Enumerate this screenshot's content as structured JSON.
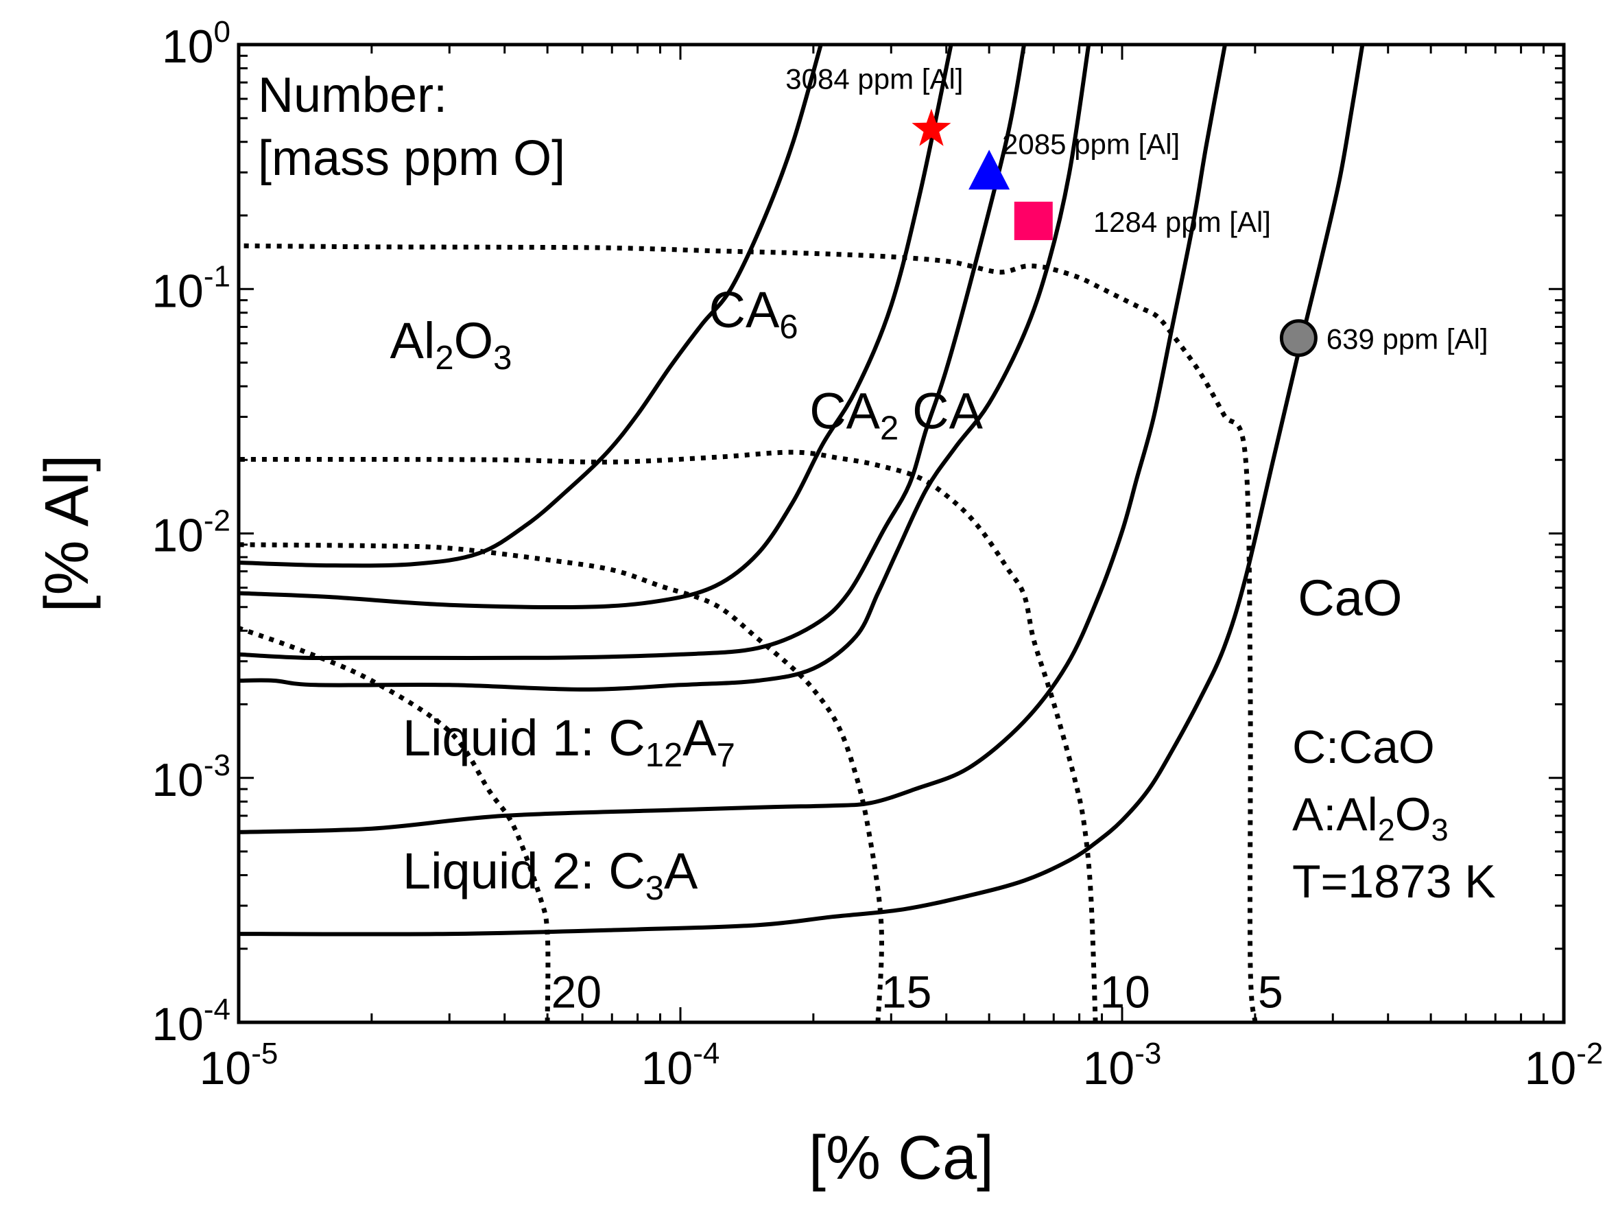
{
  "chart_data": {
    "type": "line",
    "xscale": "log",
    "yscale": "log",
    "xlim": [
      1e-05,
      0.01
    ],
    "ylim": [
      0.0001,
      1
    ],
    "xlabel": "[% Ca]",
    "ylabel": "[% Al]",
    "x_ticks": [
      {
        "base": "10",
        "exp": "-5",
        "value": 1e-05
      },
      {
        "base": "10",
        "exp": "-4",
        "value": 0.0001
      },
      {
        "base": "10",
        "exp": "-3",
        "value": 0.001
      },
      {
        "base": "10",
        "exp": "-2",
        "value": 0.01
      }
    ],
    "y_ticks": [
      {
        "base": "10",
        "exp": "-4",
        "value": 0.0001
      },
      {
        "base": "10",
        "exp": "-3",
        "value": 0.001
      },
      {
        "base": "10",
        "exp": "-2",
        "value": 0.01
      },
      {
        "base": "10",
        "exp": "-1",
        "value": 0.1
      },
      {
        "base": "10",
        "exp": "0",
        "value": 1
      }
    ],
    "legend_title": [
      "Number:",
      "[mass ppm O]"
    ],
    "region_labels": [
      {
        "id": "al2o3",
        "parts": [
          {
            "t": "Al"
          },
          {
            "t": "2",
            "sub": true
          },
          {
            "t": "O"
          },
          {
            "t": "3",
            "sub": true
          }
        ],
        "x": 2.2e-05,
        "y": 0.062
      },
      {
        "id": "ca6",
        "parts": [
          {
            "t": "CA"
          },
          {
            "t": "6",
            "sub": true
          }
        ],
        "x": 0.000116,
        "y": 0.083
      },
      {
        "id": "ca2",
        "parts": [
          {
            "t": "CA"
          },
          {
            "t": "2",
            "sub": true
          }
        ],
        "x": 0.000196,
        "y": 0.032
      },
      {
        "id": "ca",
        "parts": [
          {
            "t": "CA"
          }
        ],
        "x": 0.000335,
        "y": 0.032
      },
      {
        "id": "cao",
        "parts": [
          {
            "t": "CaO"
          }
        ],
        "x": 0.0025,
        "y": 0.0055
      },
      {
        "id": "liquid1",
        "parts": [
          {
            "t": "Liquid 1:  C"
          },
          {
            "t": "12",
            "sub": true
          },
          {
            "t": "A"
          },
          {
            "t": "7",
            "sub": true
          }
        ],
        "x": 2.35e-05,
        "y": 0.00147
      },
      {
        "id": "liquid2",
        "parts": [
          {
            "t": "Liquid 2:  C"
          },
          {
            "t": "3",
            "sub": true
          },
          {
            "t": "A"
          }
        ],
        "x": 2.35e-05,
        "y": 0.00042
      }
    ],
    "annotation_lines": [
      {
        "id": "c-cao",
        "parts": [
          {
            "t": "C:CaO"
          }
        ]
      },
      {
        "id": "a-al2o3",
        "parts": [
          {
            "t": "A:Al"
          },
          {
            "t": "2",
            "sub": true
          },
          {
            "t": "O"
          },
          {
            "t": "3",
            "sub": true
          }
        ]
      },
      {
        "id": "temperature",
        "parts": [
          {
            "t": "T=1873 K"
          }
        ]
      }
    ],
    "series": [
      {
        "name": "iso-oxygen 20 ppm",
        "oxygen_ppm": 20,
        "label": "20",
        "label_x": 5.1e-05,
        "label_y": 0.000135,
        "x": [
          5e-05,
          5e-05,
          4.8e-05,
          4.2e-05,
          3.7e-05,
          3e-05,
          2e-05,
          1.4e-05,
          1e-05
        ],
        "y": [
          0.0001,
          0.00023,
          0.00033,
          0.00063,
          0.00088,
          0.00155,
          0.0025,
          0.0033,
          0.0041
        ]
      },
      {
        "name": "iso-oxygen 15 ppm",
        "oxygen_ppm": 15,
        "label": "15",
        "label_x": 0.000285,
        "label_y": 0.000135,
        "x": [
          0.00028,
          0.000285,
          0.000265,
          0.000245,
          0.000225,
          0.0002,
          0.00018,
          0.00015,
          0.00012,
          9e-05,
          7e-05,
          5e-05,
          3e-05,
          2e-05,
          1e-05
        ],
        "y": [
          0.0001,
          0.00025,
          0.00065,
          0.00115,
          0.0017,
          0.0023,
          0.0028,
          0.0037,
          0.0051,
          0.0061,
          0.0071,
          0.0078,
          0.0087,
          0.0089,
          0.009
        ]
      },
      {
        "name": "iso-oxygen 10 ppm",
        "oxygen_ppm": 10,
        "label": "10",
        "label_x": 0.00089,
        "label_y": 0.000135,
        "x": [
          0.00087,
          0.00085,
          0.00082,
          0.00078,
          0.00072,
          0.00068,
          0.00063,
          0.0006,
          0.00055,
          0.00048,
          0.00042,
          0.00035,
          0.00028,
          0.00023,
          0.00018,
          0.00012,
          7e-05,
          4e-05,
          2e-05,
          1e-05
        ],
        "y": [
          0.0001,
          0.00033,
          0.00065,
          0.001,
          0.0017,
          0.0024,
          0.0037,
          0.0056,
          0.0072,
          0.0103,
          0.0133,
          0.0168,
          0.019,
          0.0203,
          0.0215,
          0.0205,
          0.0196,
          0.02,
          0.0201,
          0.0201
        ]
      },
      {
        "name": "iso-oxygen 5 ppm",
        "oxygen_ppm": 5,
        "label": "5",
        "label_x": 0.00203,
        "label_y": 0.000135,
        "x": [
          0.002,
          0.00195,
          0.00195,
          0.0019,
          0.0017,
          0.0015,
          0.0013,
          0.0012,
          0.0011,
          0.001,
          0.0009,
          0.0008,
          0.0007,
          0.00065,
          0.0006,
          0.00053,
          0.00045,
          0.0004,
          0.0003,
          0.0002,
          0.00012,
          7e-05,
          4e-05,
          2e-05,
          1e-05
        ],
        "y": [
          0.0001,
          0.00018,
          0.0025,
          0.021,
          0.0306,
          0.0456,
          0.0651,
          0.0773,
          0.0838,
          0.0913,
          0.1004,
          0.1113,
          0.1203,
          0.1235,
          0.1237,
          0.1172,
          0.1246,
          0.13,
          0.1355,
          0.1398,
          0.1432,
          0.1473,
          0.1483,
          0.1488,
          0.1503
        ]
      },
      {
        "name": "Al-Ca equilibrium curve 1",
        "x": [
          1e-05,
          1.6e-05,
          2.5e-05,
          3.5e-05,
          4.5e-05,
          5.5e-05,
          6.8e-05,
          8e-05,
          9.5e-05,
          0.000112,
          0.00013,
          0.000155,
          0.00018,
          0.000208
        ],
        "y": [
          0.0076,
          0.0074,
          0.0075,
          0.0083,
          0.0109,
          0.0148,
          0.0213,
          0.0307,
          0.0483,
          0.0719,
          0.1,
          0.195,
          0.4,
          1.0
        ]
      },
      {
        "name": "Al-Ca equilibrium curve 2",
        "x": [
          1e-05,
          1.6e-05,
          3e-05,
          6e-05,
          9e-05,
          0.00012,
          0.00015,
          0.00018,
          0.00021,
          0.00025,
          0.0003,
          0.00035,
          0.00041
        ],
        "y": [
          0.0057,
          0.0055,
          0.0051,
          0.005,
          0.0053,
          0.0061,
          0.0083,
          0.0135,
          0.0232,
          0.0388,
          0.0856,
          0.254,
          1.0
        ]
      },
      {
        "name": "Al-Ca equilibrium curve 3",
        "x": [
          1e-05,
          1.4e-05,
          2e-05,
          5e-05,
          0.0001,
          0.00015,
          0.0002,
          0.00024,
          0.00029,
          0.00033,
          0.00036,
          0.0004,
          0.00046,
          0.00055,
          0.0006
        ],
        "y": [
          0.0032,
          0.0031,
          0.0031,
          0.0031,
          0.0032,
          0.0034,
          0.0042,
          0.0057,
          0.0105,
          0.0159,
          0.0266,
          0.0468,
          0.1173,
          0.4226,
          1.0
        ]
      },
      {
        "name": "Al-Ca equilibrium curve 4",
        "x": [
          1e-05,
          1.2e-05,
          1.5e-05,
          3e-05,
          6e-05,
          0.0001,
          0.00015,
          0.0002,
          0.00025,
          0.00028,
          0.00031,
          0.00036,
          0.00042,
          0.0005,
          0.0006,
          0.00068,
          0.00076,
          0.00084
        ],
        "y": [
          0.0025,
          0.0025,
          0.0024,
          0.0024,
          0.0023,
          0.0024,
          0.0025,
          0.0028,
          0.0038,
          0.0057,
          0.0085,
          0.0151,
          0.0226,
          0.0341,
          0.0653,
          0.126,
          0.3,
          1.0
        ]
      },
      {
        "name": "Al-Ca equilibrium curve 5",
        "x": [
          1e-05,
          2e-05,
          4e-05,
          0.0001,
          0.00016,
          0.00022,
          0.00027,
          0.00034,
          0.00045,
          0.0006,
          0.00075,
          0.00088,
          0.001,
          0.00108,
          0.00118,
          0.0013,
          0.00145,
          0.00155,
          0.00171
        ],
        "y": [
          0.0006,
          0.00062,
          0.0007,
          0.00074,
          0.00076,
          0.00077,
          0.00079,
          0.0009,
          0.0011,
          0.0017,
          0.0029,
          0.0054,
          0.0102,
          0.0168,
          0.0301,
          0.0708,
          0.1882,
          0.3849,
          1.0
        ]
      },
      {
        "name": "Al-Ca equilibrium curve 6",
        "x": [
          1e-05,
          3e-05,
          8e-05,
          0.00015,
          0.00022,
          0.00032,
          0.00045,
          0.0006,
          0.00076,
          0.00088,
          0.001,
          0.00115,
          0.0013,
          0.0015,
          0.0017,
          0.0019,
          0.0022,
          0.0025,
          0.0028,
          0.0031,
          0.0033,
          0.0035
        ],
        "y": [
          0.00023,
          0.00023,
          0.00024,
          0.00025,
          0.00027,
          0.00029,
          0.00033,
          0.00038,
          0.00046,
          0.00055,
          0.00067,
          0.0009,
          0.0013,
          0.0021,
          0.0034,
          0.0065,
          0.0201,
          0.0538,
          0.1242,
          0.2751,
          0.5235,
          1.0
        ]
      }
    ],
    "markers": [
      {
        "name": "star",
        "shape": "star",
        "color": "#ff0000",
        "x": 0.00037,
        "y": 0.45,
        "label": "3084 ppm [Al]",
        "label_x": 0.000173,
        "label_y": 0.73
      },
      {
        "name": "triangle",
        "shape": "triangle",
        "color": "#0000ff",
        "x": 0.0005,
        "y": 0.3,
        "label": "2085 ppm [Al]",
        "label_x": 0.000535,
        "label_y": 0.395
      },
      {
        "name": "square",
        "shape": "square",
        "color": "#ff0066",
        "x": 0.00063,
        "y": 0.19,
        "label": "1284 ppm [Al]",
        "label_x": 0.00086,
        "label_y": 0.19
      },
      {
        "name": "circle",
        "shape": "circle",
        "color": "#808080",
        "x": 0.00251,
        "y": 0.063,
        "label": "639 ppm [Al]",
        "label_x": 0.0029,
        "label_y": 0.063
      }
    ]
  }
}
